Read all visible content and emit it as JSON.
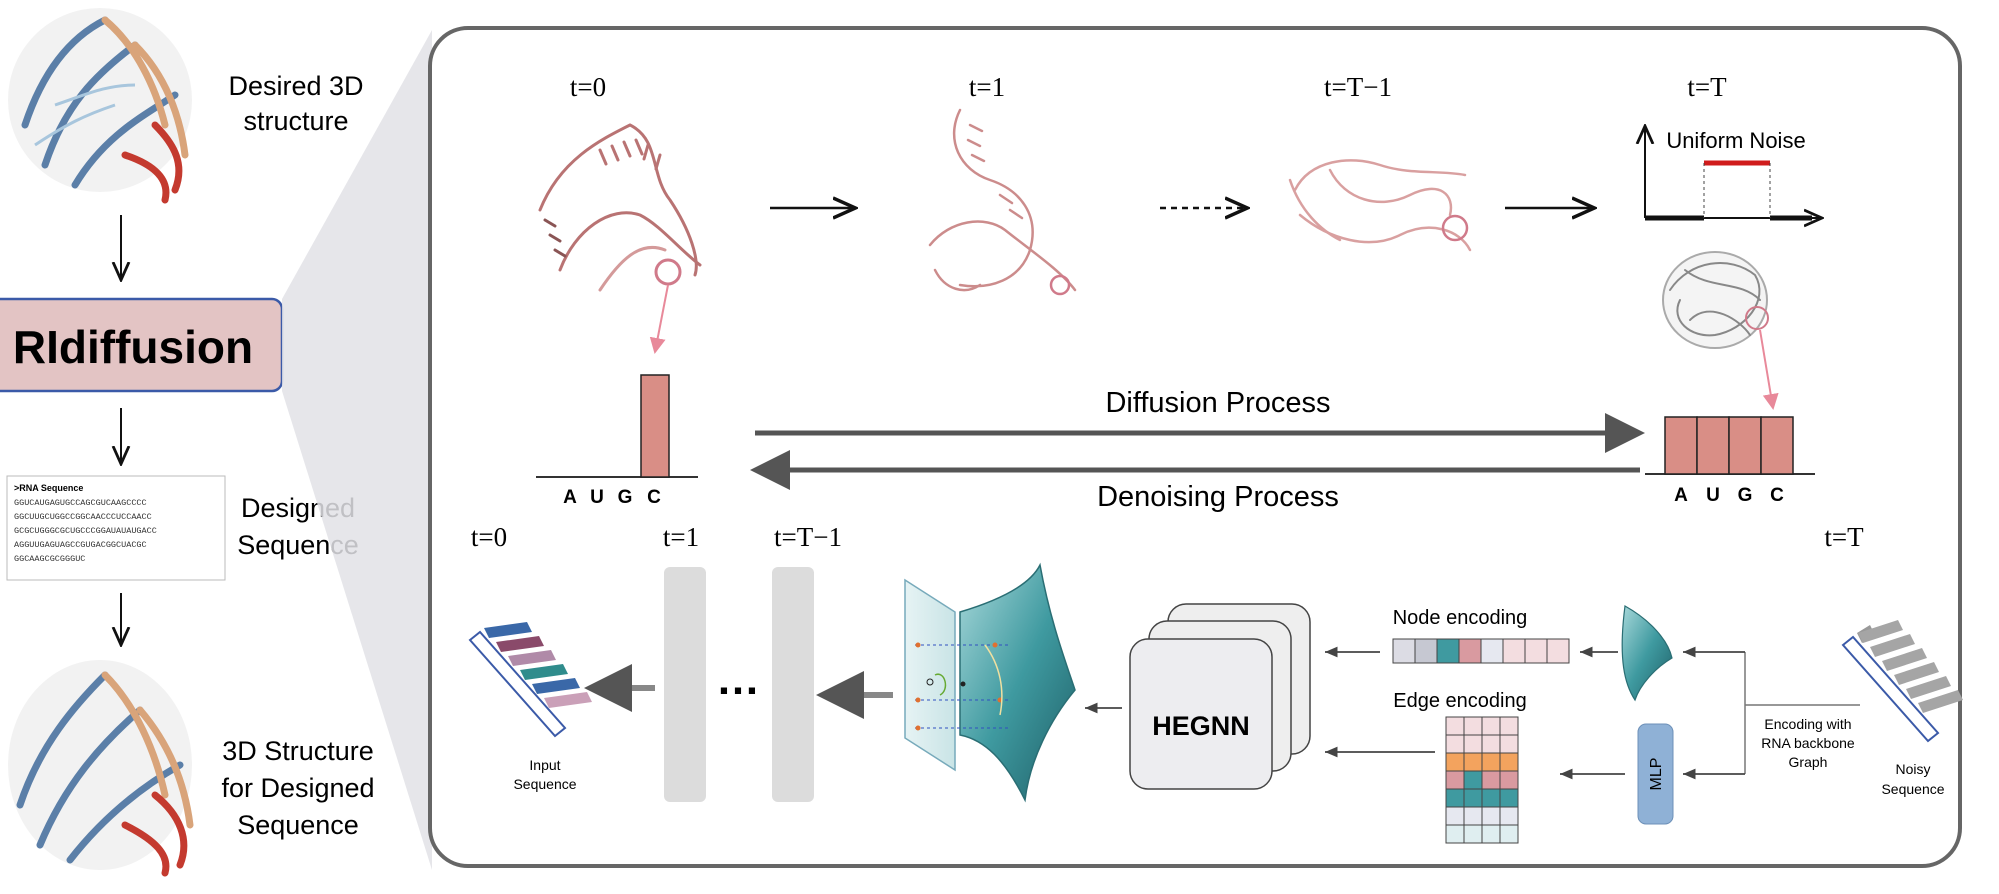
{
  "left_panel": {
    "desired_label_line1": "Desired 3D",
    "desired_label_line2": "structure",
    "title": "RIdiffusion",
    "seq_header": ">RNA Sequence",
    "seq_lines": [
      "GGUCAUGAGUGCCAGCGUCAAGCCCC",
      "GGCUUGCUGGCCGGCAACCCUCCAACC",
      "GCGCUGGGCGCUGCCCGGAUAUAUGACC",
      "AGGUUGAGUAGCCGUGACGGCUACGC",
      "GGCAAGCGCGGGUC"
    ],
    "designed_label_line1": "Designed",
    "designed_label_line2": "Sequence",
    "final_label_line1": "3D Structure",
    "final_label_line2": "for Designed",
    "final_label_line3": "Sequence"
  },
  "forward": {
    "timesteps": [
      "t=0",
      "t=1",
      "t=T−1",
      "t=T"
    ],
    "uniform_noise_label": "Uniform Noise",
    "diffusion_label": "Diffusion Process",
    "denoising_label": "Denoising Process",
    "bases": [
      "A",
      "U",
      "G",
      "C"
    ]
  },
  "reverse": {
    "timesteps": [
      "t=0",
      "t=1",
      "t=T−1",
      "t=T"
    ],
    "input_label_line1": "Input",
    "input_label_line2": "Sequence",
    "ellipsis": "…",
    "hegnn_label": "HEGNN",
    "node_encoding_label": "Node encoding",
    "edge_encoding_label": "Edge encoding",
    "mlp_label": "MLP",
    "encoding_label_line1": "Encoding with",
    "encoding_label_line2": "RNA backbone",
    "encoding_label_line3": "Graph",
    "noisy_label_line1": "Noisy",
    "noisy_label_line2": "Sequence"
  },
  "colors": {
    "rna_pink": "#c98686",
    "bar_fill": "#d98e86",
    "title_box": "#e3c4c4",
    "title_border": "#3b5aa8",
    "teal": "#2f8c90",
    "mlp_blue": "#8fb1d6",
    "noise_red": "#d01c1c"
  }
}
